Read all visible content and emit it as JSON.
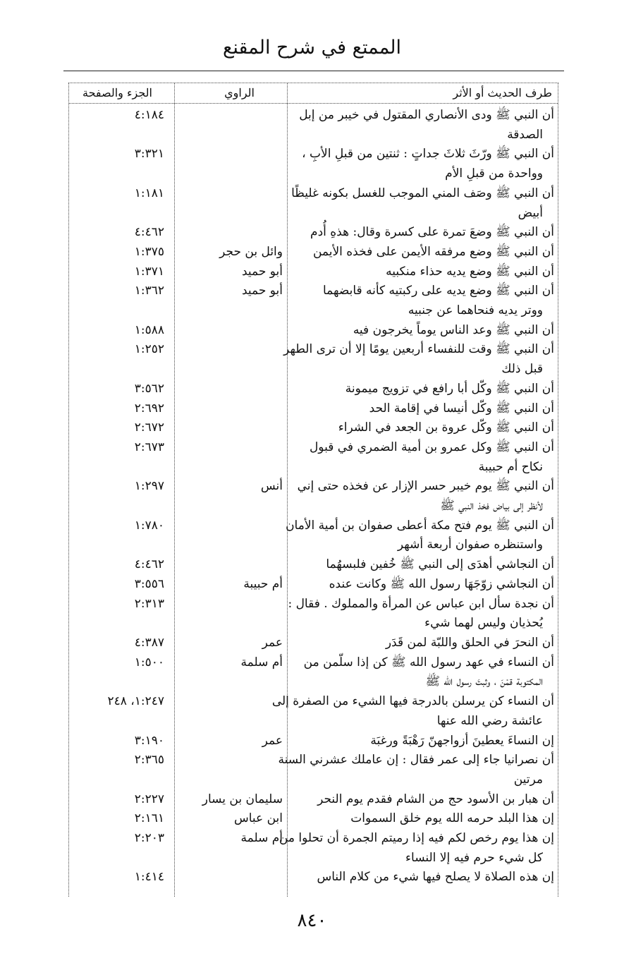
{
  "header": {
    "title": "الممتع في شرح المقنع"
  },
  "table": {
    "columns": [
      "طرف الحديث أو الأثر",
      "الراوي",
      "الجزء والصفحة"
    ],
    "rows": [
      {
        "text": [
          "أن النبي ﷺ ودى الأنصاري المقتول في خيبر من إبل",
          "الصدقة"
        ],
        "narrator": "",
        "ref": "٤:١٨٤"
      },
      {
        "text": [
          "أن النبي ﷺ ورّثَ ثلاثَ جداتٍ : ثنتين من قبلِ الأبِ ،",
          "وواحدة من قبلِ الأم"
        ],
        "narrator": "",
        "ref": "٣:٣٢١"
      },
      {
        "text": [
          "أن النبي ﷺ وصَف المني الموجب للغسل بكونه غليظًا",
          "أبيض"
        ],
        "narrator": "",
        "ref": "١:١٨١"
      },
      {
        "text": [
          "أن النبي ﷺ وضعَ تمرة على كسرة وقال: هذهِ أُدم"
        ],
        "narrator": "",
        "ref": "٤:٤٦٢"
      },
      {
        "text": [
          "أن النبي ﷺ وضع مرفقه الأيمن على فخذه الأيمن"
        ],
        "narrator": "وائل بن حجر",
        "ref": "١:٣٧٥"
      },
      {
        "text": [
          "أن النبي ﷺ وضع يديه حذاء منكبيه"
        ],
        "narrator": "أبو حميد",
        "ref": "١:٣٧١"
      },
      {
        "text": [
          "أن النبي ﷺ وضع يديه على ركبتيه كأنه قابضهما",
          "ووتر يديه فنحاهما عن جنبيه"
        ],
        "narrator": "أبو حميد",
        "ref": "١:٣٦٢"
      },
      {
        "text": [
          "أن النبي ﷺ وعد الناس يوماً يخرجون فيه"
        ],
        "narrator": "",
        "ref": "١:٥٨٨"
      },
      {
        "text": [
          "أن النبي ﷺ وقت للنفساء أربعين يومًا إلا أن ترى الطهر",
          "قبل ذلك"
        ],
        "narrator": "",
        "ref": "١:٢٥٢"
      },
      {
        "text": [
          "أن النبي ﷺ وكّل أبا رافع في تزويج ميمونة"
        ],
        "narrator": "",
        "ref": "٣:٥٦٢"
      },
      {
        "text": [
          "أن النبي ﷺ وكّل أنيسا في إقامة الحد"
        ],
        "narrator": "",
        "ref": "٢:٦٩٢"
      },
      {
        "text": [
          "أن النبي ﷺ وكّل عروة بن الجعد في الشراء"
        ],
        "narrator": "",
        "ref": "٢:٦٧٢"
      },
      {
        "text": [
          "أن النبي ﷺ وكل عمرو بن أمية الضمري في قبول",
          "نكاح أم حبيبة"
        ],
        "narrator": "",
        "ref": "٢:٦٧٣"
      },
      {
        "text": [
          "أن النبي ﷺ يوم خيبر حسر الإزار عن فخذه حتى إني",
          "لأنظر إلى بياض فخذ النبي ﷺ"
        ],
        "narrator": "أنس",
        "ref": "١:٢٩٧"
      },
      {
        "text": [
          "أن النبي ﷺ يوم فتح مكة أعطى صفوان بن أمية الأمان",
          "واستنظره صفوان أربعة أشهر"
        ],
        "narrator": "",
        "ref": "١:٧٨٠"
      },
      {
        "text": [
          "أن النجاشي أهدَى إلى النبي ﷺ خُفين فلبسهُما"
        ],
        "narrator": "",
        "ref": "٤:٤٦٢"
      },
      {
        "text": [
          "أن النجاشي زوّجَهَا رسول الله ﷺ وكانت عنده"
        ],
        "narrator": "أم حبيبة",
        "ref": "٣:٥٥٦"
      },
      {
        "text": [
          "أن نجدة سأل ابن عباس عن المرأة والمملوك . فقال :",
          "يُحذيان وليس لهما شيء"
        ],
        "narrator": "",
        "ref": "٢:٣١٣"
      },
      {
        "text": [
          "أن النحرَ في الحلق واللبّة لمن قَدَر"
        ],
        "narrator": "عمر",
        "ref": "٤:٣٨٧"
      },
      {
        "text": [
          "أن النساء في عهد رسول الله ﷺ كن إذا سلّمن من",
          "المكتوبة قمْنَ ، وثبتَ رسول الله ﷺ"
        ],
        "narrator": "أم سلمة",
        "ref": "١:٥٠٠"
      },
      {
        "text": [
          "أن النساء كن يرسلن بالدرجة فيها الشيء من الصفرة إلى",
          "عائشة رضي الله عنها"
        ],
        "narrator": "",
        "ref": "١:٢٤٧، ٢٤٨"
      },
      {
        "text": [
          "إن النساءَ يعطينَ أزواجهنّ رَهْبَةً ورغبَة"
        ],
        "narrator": "عمر",
        "ref": "٣:١٩٠"
      },
      {
        "text": [
          "أن نصرانيا جاء إلى عمر فقال : إن عاملك عشرني السنة",
          "مرتين"
        ],
        "narrator": "",
        "ref": "٢:٣٦٥"
      },
      {
        "text": [
          "أن هبار بن الأسود حج من الشام فقدم يوم النحر"
        ],
        "narrator": "سليمان بن يسار",
        "ref": "٢:٢٢٧"
      },
      {
        "text": [
          "إن هذا البلد حرمه الله يوم خلق السموات"
        ],
        "narrator": "ابن عباس",
        "ref": "٢:١٦١"
      },
      {
        "text": [
          "إن هذا يوم رخص لكم فيه إذا رميتم الجمرة أن تحلوا من",
          "كل شيء حرم فيه إلا النساء"
        ],
        "narrator": "أم سلمة",
        "ref": "٢:٢٠٣"
      },
      {
        "text": [
          "إن هذه الصلاة لا يصلح فيها شيء من كلام الناس"
        ],
        "narrator": "",
        "ref": "١:٤١٤"
      }
    ]
  },
  "footer": {
    "page_number": "٨٤٠"
  }
}
